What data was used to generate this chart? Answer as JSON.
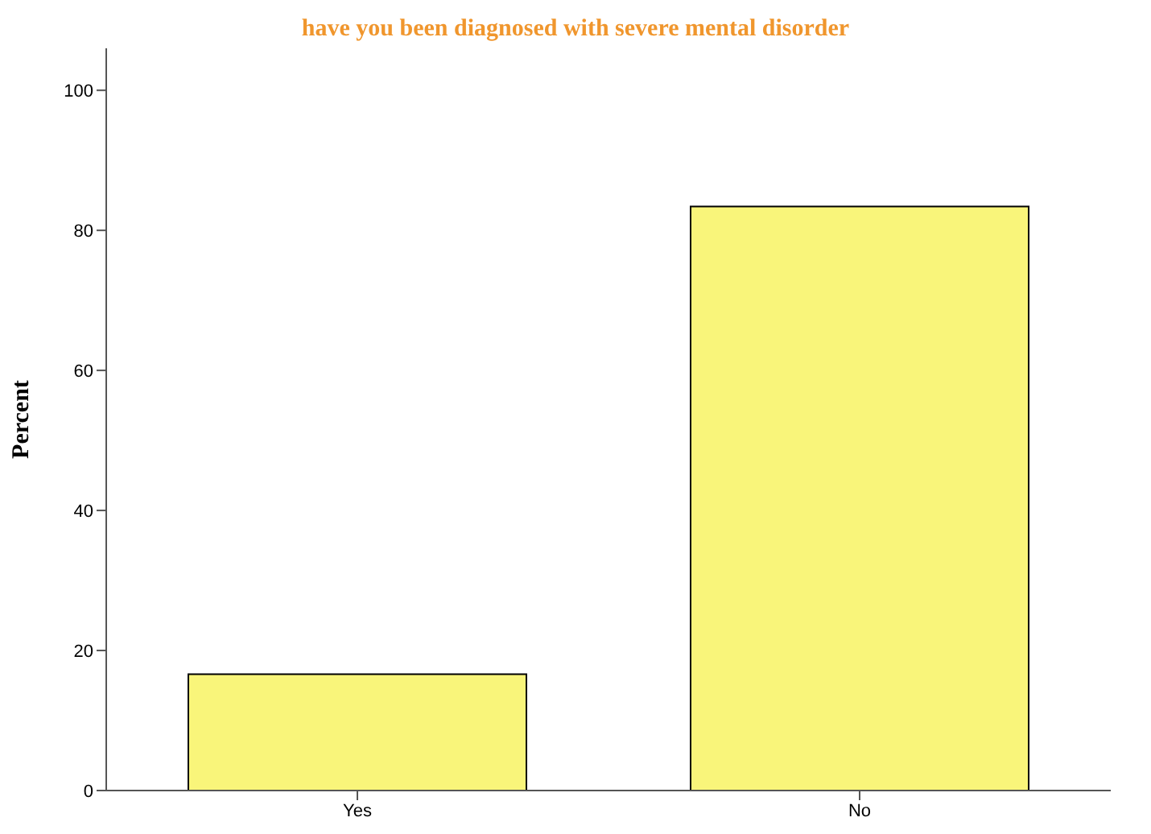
{
  "chart_data": {
    "type": "bar",
    "title": "have you been diagnosed with severe mental disorder",
    "ylabel": "Percent",
    "categories": [
      "Yes",
      "No"
    ],
    "values": [
      16.6,
      83.4
    ],
    "color": "#f9f57a",
    "ylim": [
      0,
      106
    ],
    "yticks": [
      0,
      20,
      40,
      60,
      80,
      100
    ],
    "grid": false,
    "legend": false
  }
}
